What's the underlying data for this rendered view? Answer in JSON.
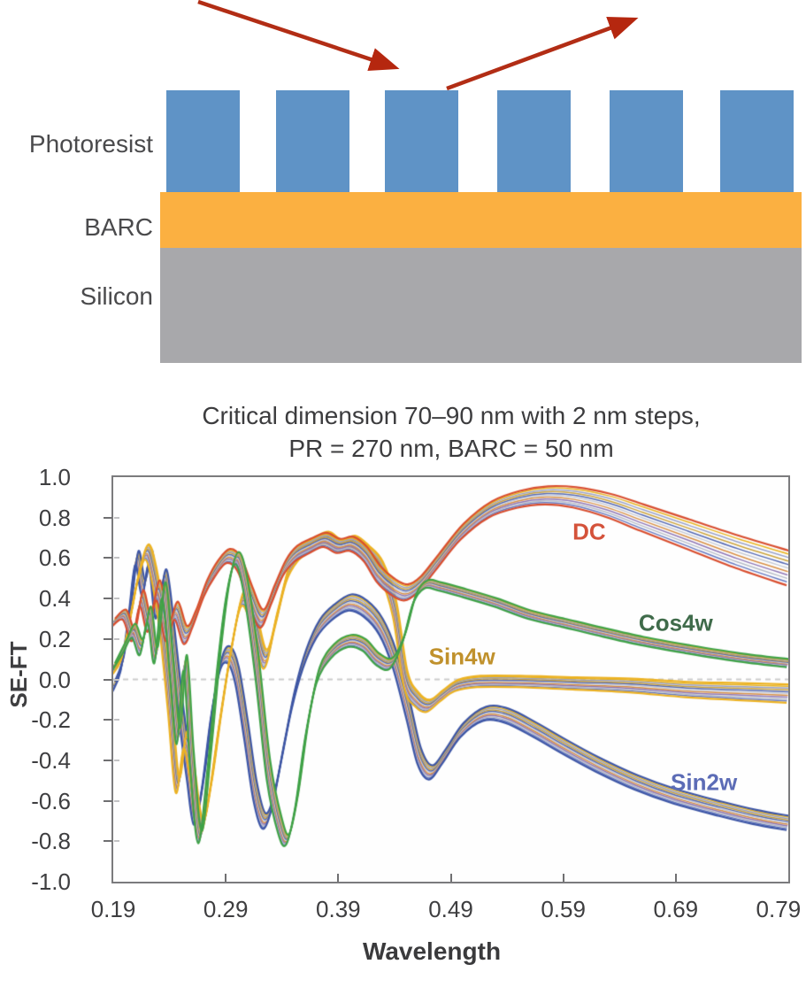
{
  "diagram": {
    "photoresist_label": "Photoresist",
    "barc_label": "BARC",
    "silicon_label": "Silicon",
    "colors": {
      "photoresist_bar": "#5f93c6",
      "barc_layer": "#fbb041",
      "silicon_layer": "#a8a8ab",
      "arrow": "#b22d15",
      "label_text": "#4a4a4c"
    }
  },
  "chart_data": {
    "type": "line",
    "title_line1": "Critical dimension 70–90 nm with 2 nm steps,",
    "title_line2": "PR = 270 nm, BARC = 50 nm",
    "xlabel": "Wavelength",
    "ylabel": "SE-FT",
    "xlim": [
      0.19,
      0.79
    ],
    "ylim": [
      -1.0,
      1.0
    ],
    "grid": "off",
    "legend_position": "inline-labels",
    "x_tick_values": [
      0.19,
      0.29,
      0.39,
      0.49,
      0.59,
      0.69,
      0.79
    ],
    "x_tick_labels": [
      "0.19",
      "0.29",
      "0.39",
      "0.49",
      "0.59",
      "0.69",
      "0.79"
    ],
    "y_tick_values": [
      1.0,
      0.8,
      0.6,
      0.4,
      0.2,
      0.0,
      -0.2,
      -0.4,
      -0.6,
      -0.8,
      -1.0
    ],
    "y_tick_labels": [
      "1.0",
      "0.8",
      "0.6",
      "0.4",
      "0.2",
      "0.0",
      "-0.2",
      "-0.4",
      "-0.6",
      "-0.8",
      "-1.0"
    ],
    "zero_line": {
      "style": "dashed",
      "color": "#cbcbcb",
      "y": 0
    },
    "band_meaning": "Each series is a bundle of 11 curves for CD = 70–90 nm in 2 nm steps",
    "curves_per_series": 11,
    "strand_palette": [
      "#e7b322",
      "#6679c0",
      "#b7bcc7",
      "#8f77b5",
      "#d78f45",
      "#c6cbd6",
      "#5468b2",
      "#caa23c",
      "#99a1c8"
    ],
    "series": [
      {
        "name": "Sin2w",
        "label": "Sin2w",
        "color": "#3d56a6",
        "label_color": "#5c6cb6",
        "label_pos": [
          0.715,
          -0.51
        ],
        "points": [
          [
            0.19,
            -0.04,
            0.03
          ],
          [
            0.198,
            0.08,
            0.038
          ],
          [
            0.205,
            0.35,
            0.04
          ],
          [
            0.211,
            0.6,
            0.035
          ],
          [
            0.217,
            0.45,
            0.04
          ],
          [
            0.223,
            0.6,
            0.04
          ],
          [
            0.229,
            0.35,
            0.048
          ],
          [
            0.236,
            0.5,
            0.042
          ],
          [
            0.243,
            0.2,
            0.05
          ],
          [
            0.25,
            -0.15,
            0.05
          ],
          [
            0.257,
            -0.45,
            0.048
          ],
          [
            0.263,
            -0.68,
            0.038
          ],
          [
            0.27,
            -0.5,
            0.048
          ],
          [
            0.278,
            -0.15,
            0.05
          ],
          [
            0.286,
            0.08,
            0.042
          ],
          [
            0.293,
            0.12,
            0.04
          ],
          [
            0.3,
            0.02,
            0.042
          ],
          [
            0.308,
            -0.25,
            0.048
          ],
          [
            0.316,
            -0.55,
            0.045
          ],
          [
            0.324,
            -0.7,
            0.038
          ],
          [
            0.332,
            -0.6,
            0.045
          ],
          [
            0.341,
            -0.35,
            0.048
          ],
          [
            0.35,
            -0.1,
            0.048
          ],
          [
            0.36,
            0.1,
            0.046
          ],
          [
            0.372,
            0.25,
            0.044
          ],
          [
            0.385,
            0.33,
            0.04
          ],
          [
            0.4,
            0.38,
            0.04
          ],
          [
            0.414,
            0.35,
            0.04
          ],
          [
            0.428,
            0.26,
            0.04
          ],
          [
            0.44,
            0.1,
            0.042
          ],
          [
            0.452,
            -0.15,
            0.044
          ],
          [
            0.462,
            -0.38,
            0.04
          ],
          [
            0.472,
            -0.46,
            0.035
          ],
          [
            0.484,
            -0.38,
            0.035
          ],
          [
            0.5,
            -0.25,
            0.035
          ],
          [
            0.52,
            -0.17,
            0.035
          ],
          [
            0.54,
            -0.18,
            0.035
          ],
          [
            0.565,
            -0.25,
            0.035
          ],
          [
            0.59,
            -0.33,
            0.035
          ],
          [
            0.62,
            -0.42,
            0.035
          ],
          [
            0.655,
            -0.51,
            0.035
          ],
          [
            0.69,
            -0.58,
            0.035
          ],
          [
            0.73,
            -0.64,
            0.035
          ],
          [
            0.76,
            -0.68,
            0.035
          ],
          [
            0.79,
            -0.71,
            0.035
          ]
        ]
      },
      {
        "name": "Sin4w",
        "label": "Sin4w",
        "color": "#ecb223",
        "label_color": "#c0912c",
        "label_pos": [
          0.5,
          0.11
        ],
        "points": [
          [
            0.19,
            0.04,
            0.02
          ],
          [
            0.198,
            0.12,
            0.03
          ],
          [
            0.205,
            0.3,
            0.04
          ],
          [
            0.212,
            0.5,
            0.04
          ],
          [
            0.22,
            0.63,
            0.038
          ],
          [
            0.227,
            0.5,
            0.048
          ],
          [
            0.233,
            0.28,
            0.05
          ],
          [
            0.24,
            -0.1,
            0.05
          ],
          [
            0.247,
            -0.52,
            0.04
          ],
          [
            0.254,
            -0.3,
            0.042
          ],
          [
            0.26,
            -0.45,
            0.045
          ],
          [
            0.268,
            -0.73,
            0.035
          ],
          [
            0.276,
            -0.55,
            0.045
          ],
          [
            0.285,
            -0.2,
            0.048
          ],
          [
            0.295,
            0.15,
            0.048
          ],
          [
            0.305,
            0.4,
            0.04
          ],
          [
            0.315,
            0.3,
            0.045
          ],
          [
            0.325,
            0.1,
            0.048
          ],
          [
            0.335,
            0.3,
            0.045
          ],
          [
            0.345,
            0.52,
            0.04
          ],
          [
            0.355,
            0.62,
            0.038
          ],
          [
            0.368,
            0.67,
            0.033
          ],
          [
            0.38,
            0.7,
            0.03
          ],
          [
            0.392,
            0.66,
            0.03
          ],
          [
            0.404,
            0.68,
            0.03
          ],
          [
            0.416,
            0.63,
            0.03
          ],
          [
            0.428,
            0.55,
            0.033
          ],
          [
            0.44,
            0.35,
            0.038
          ],
          [
            0.45,
            0.0,
            0.04
          ],
          [
            0.46,
            -0.1,
            0.035
          ],
          [
            0.47,
            -0.13,
            0.03
          ],
          [
            0.482,
            -0.08,
            0.028
          ],
          [
            0.495,
            -0.03,
            0.028
          ],
          [
            0.515,
            -0.01,
            0.028
          ],
          [
            0.55,
            -0.01,
            0.028
          ],
          [
            0.6,
            -0.02,
            0.03
          ],
          [
            0.65,
            -0.03,
            0.034
          ],
          [
            0.7,
            -0.05,
            0.038
          ],
          [
            0.745,
            -0.06,
            0.042
          ],
          [
            0.79,
            -0.07,
            0.045
          ]
        ]
      },
      {
        "name": "DC",
        "label": "DC",
        "color": "#d84e2f",
        "label_color": "#d4523a",
        "label_pos": [
          0.613,
          0.73
        ],
        "points": [
          [
            0.19,
            0.28,
            0.02
          ],
          [
            0.2,
            0.32,
            0.025
          ],
          [
            0.208,
            0.22,
            0.03
          ],
          [
            0.215,
            0.4,
            0.04
          ],
          [
            0.222,
            0.28,
            0.045
          ],
          [
            0.23,
            0.44,
            0.05
          ],
          [
            0.238,
            0.24,
            0.05
          ],
          [
            0.246,
            0.34,
            0.045
          ],
          [
            0.254,
            0.22,
            0.045
          ],
          [
            0.262,
            0.3,
            0.04
          ],
          [
            0.272,
            0.45,
            0.04
          ],
          [
            0.282,
            0.55,
            0.04
          ],
          [
            0.292,
            0.61,
            0.035
          ],
          [
            0.302,
            0.57,
            0.035
          ],
          [
            0.312,
            0.42,
            0.04
          ],
          [
            0.322,
            0.3,
            0.045
          ],
          [
            0.332,
            0.42,
            0.045
          ],
          [
            0.342,
            0.55,
            0.04
          ],
          [
            0.352,
            0.62,
            0.04
          ],
          [
            0.365,
            0.66,
            0.038
          ],
          [
            0.378,
            0.69,
            0.035
          ],
          [
            0.39,
            0.66,
            0.035
          ],
          [
            0.402,
            0.67,
            0.035
          ],
          [
            0.414,
            0.62,
            0.035
          ],
          [
            0.426,
            0.52,
            0.04
          ],
          [
            0.438,
            0.46,
            0.04
          ],
          [
            0.45,
            0.43,
            0.04
          ],
          [
            0.462,
            0.47,
            0.04
          ],
          [
            0.478,
            0.58,
            0.04
          ],
          [
            0.5,
            0.73,
            0.04
          ],
          [
            0.525,
            0.84,
            0.04
          ],
          [
            0.55,
            0.89,
            0.042
          ],
          [
            0.575,
            0.91,
            0.045
          ],
          [
            0.6,
            0.9,
            0.05
          ],
          [
            0.63,
            0.86,
            0.058
          ],
          [
            0.66,
            0.8,
            0.065
          ],
          [
            0.7,
            0.72,
            0.072
          ],
          [
            0.745,
            0.63,
            0.08
          ],
          [
            0.79,
            0.55,
            0.085
          ]
        ]
      },
      {
        "name": "Cos4w",
        "label": "Cos4w",
        "color": "#3fa247",
        "label_color": "#3f6b4a",
        "label_pos": [
          0.69,
          0.28
        ],
        "points": [
          [
            0.19,
            0.06,
            0.02
          ],
          [
            0.2,
            0.16,
            0.03
          ],
          [
            0.208,
            0.24,
            0.035
          ],
          [
            0.215,
            0.16,
            0.04
          ],
          [
            0.222,
            0.32,
            0.04
          ],
          [
            0.228,
            0.12,
            0.04
          ],
          [
            0.235,
            0.44,
            0.04
          ],
          [
            0.242,
            0.05,
            0.04
          ],
          [
            0.248,
            -0.28,
            0.04
          ],
          [
            0.254,
            0.08,
            0.04
          ],
          [
            0.26,
            -0.4,
            0.045
          ],
          [
            0.267,
            -0.78,
            0.03
          ],
          [
            0.275,
            -0.42,
            0.04
          ],
          [
            0.284,
            0.1,
            0.04
          ],
          [
            0.292,
            0.45,
            0.038
          ],
          [
            0.3,
            0.6,
            0.03
          ],
          [
            0.308,
            0.45,
            0.04
          ],
          [
            0.318,
            0.05,
            0.048
          ],
          [
            0.328,
            -0.45,
            0.048
          ],
          [
            0.338,
            -0.72,
            0.04
          ],
          [
            0.345,
            -0.79,
            0.028
          ],
          [
            0.353,
            -0.6,
            0.04
          ],
          [
            0.362,
            -0.25,
            0.042
          ],
          [
            0.372,
            0.02,
            0.04
          ],
          [
            0.385,
            0.14,
            0.035
          ],
          [
            0.4,
            0.19,
            0.03
          ],
          [
            0.413,
            0.17,
            0.028
          ],
          [
            0.425,
            0.1,
            0.028
          ],
          [
            0.437,
            0.08,
            0.028
          ],
          [
            0.448,
            0.2,
            0.026
          ],
          [
            0.458,
            0.4,
            0.024
          ],
          [
            0.468,
            0.47,
            0.02
          ],
          [
            0.48,
            0.46,
            0.02
          ],
          [
            0.5,
            0.43,
            0.02
          ],
          [
            0.53,
            0.38,
            0.02
          ],
          [
            0.56,
            0.32,
            0.02
          ],
          [
            0.59,
            0.28,
            0.02
          ],
          [
            0.62,
            0.24,
            0.02
          ],
          [
            0.66,
            0.19,
            0.02
          ],
          [
            0.7,
            0.15,
            0.02
          ],
          [
            0.745,
            0.11,
            0.02
          ],
          [
            0.79,
            0.08,
            0.02
          ]
        ]
      }
    ]
  }
}
